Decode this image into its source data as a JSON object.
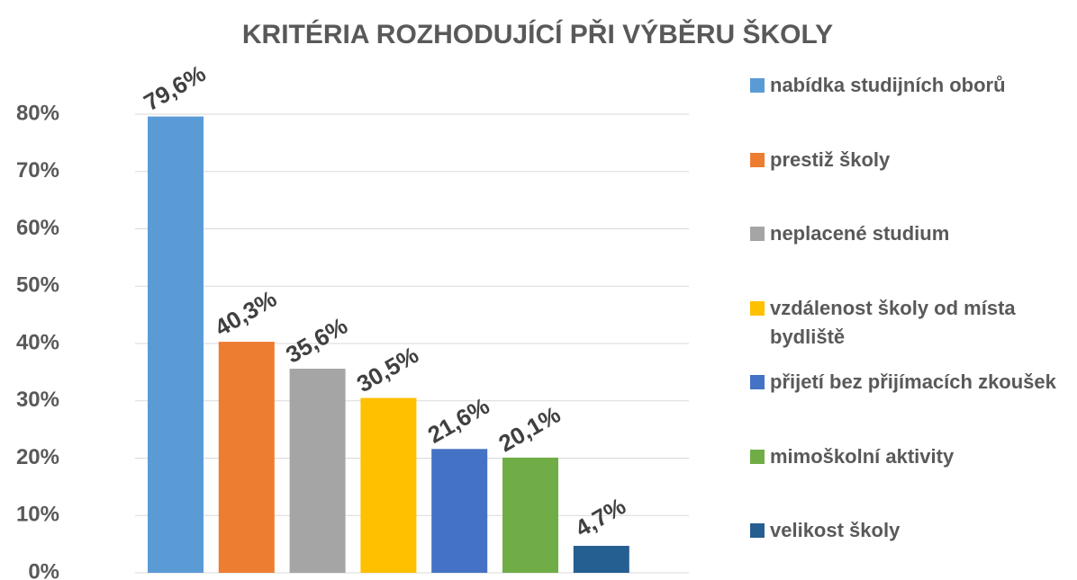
{
  "chart_data": {
    "type": "bar",
    "title": "KRITÉRIA ROZHODUJÍCÍ PŘI VÝBĚRU ŠKOLY",
    "categories": [
      null
    ],
    "series": [
      {
        "name": "nabídka studijních oborů",
        "color": "#5b9bd5",
        "values": [
          79.6
        ],
        "value_labels": [
          "79,6%"
        ]
      },
      {
        "name": "prestiž školy",
        "color": "#ed7d31",
        "values": [
          40.3
        ],
        "value_labels": [
          "40,3%"
        ]
      },
      {
        "name": "neplacené studium",
        "color": "#a5a5a5",
        "values": [
          35.6
        ],
        "value_labels": [
          "35,6%"
        ]
      },
      {
        "name": "vzdálenost školy od místa bydliště",
        "color": "#ffc000",
        "values": [
          30.5
        ],
        "value_labels": [
          "30,5%"
        ]
      },
      {
        "name": "přijetí bez přijímacích zkoušek",
        "color": "#4472c4",
        "values": [
          21.6
        ],
        "value_labels": [
          "21,6%"
        ]
      },
      {
        "name": "mimoškolní aktivity",
        "color": "#70ad47",
        "values": [
          20.1
        ],
        "value_labels": [
          "20,1%"
        ]
      },
      {
        "name": "velikost školy",
        "color": "#255e91",
        "values": [
          4.7
        ],
        "value_labels": [
          "4,7%"
        ]
      }
    ],
    "ylim": [
      0,
      80
    ],
    "yticks": [
      {
        "value": 0,
        "label": "0%"
      },
      {
        "value": 10,
        "label": "10%"
      },
      {
        "value": 20,
        "label": "20%"
      },
      {
        "value": 30,
        "label": "30%"
      },
      {
        "value": 40,
        "label": "40%"
      },
      {
        "value": 50,
        "label": "50%"
      },
      {
        "value": 60,
        "label": "60%"
      },
      {
        "value": 70,
        "label": "70%"
      },
      {
        "value": 80,
        "label": "80%"
      }
    ],
    "grid": true,
    "legend": "right"
  }
}
